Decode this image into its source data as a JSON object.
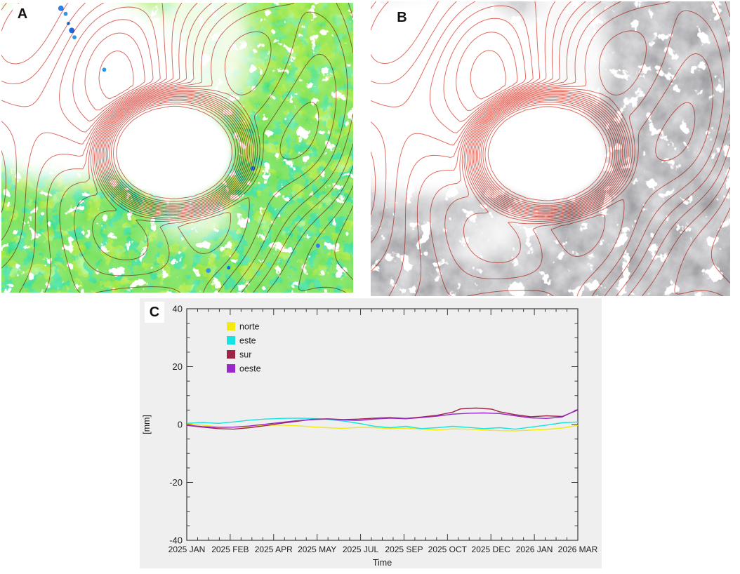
{
  "panels": {
    "a": {
      "label": "A"
    },
    "b": {
      "label": "B"
    },
    "c": {
      "label": "C"
    }
  },
  "map_a": {
    "colors": {
      "data_green": "#3fd23a",
      "cyan_patch": "#12dcc6",
      "yellow_patch": "#cce818",
      "blue_dot": "#2f7fe8",
      "contour": "#d5544a",
      "no_data": "#ffffff"
    }
  },
  "map_b": {
    "colors": {
      "data_gray": "#8d8d8d",
      "contour": "#e0564a",
      "no_data": "#ffffff"
    }
  },
  "chart_data": {
    "type": "line",
    "title": "",
    "xlabel": "Time",
    "ylabel": "[mm]",
    "ylim": [
      -40,
      40
    ],
    "yticks": [
      -40,
      -20,
      0,
      20,
      40
    ],
    "y_minor_step": 5,
    "x_minor_subdivisions": 4,
    "grid": false,
    "legend_position": "upper-left-inside",
    "plot_background": "#efefef",
    "frame_color": "#3a3a3a",
    "x_tick_labels": [
      "2025 JAN",
      "2025 FEB",
      "2025 APR",
      "2025 MAY",
      "2025 JUL",
      "2025 SEP",
      "2025 OCT",
      "2025 DEC",
      "2026 JAN",
      "2026 MAR"
    ],
    "series": [
      {
        "name": "norte",
        "color": "#f2ea10",
        "points": [
          [
            0,
            0.3
          ],
          [
            0.04,
            -0.2
          ],
          [
            0.08,
            -0.8
          ],
          [
            0.12,
            -1.0
          ],
          [
            0.16,
            -0.6
          ],
          [
            0.2,
            -0.3
          ],
          [
            0.24,
            -0.2
          ],
          [
            0.28,
            -0.4
          ],
          [
            0.32,
            -0.8
          ],
          [
            0.36,
            -1.1
          ],
          [
            0.4,
            -1.3
          ],
          [
            0.44,
            -1.0
          ],
          [
            0.48,
            -1.1
          ],
          [
            0.52,
            -1.4
          ],
          [
            0.56,
            -1.2
          ],
          [
            0.6,
            -1.6
          ],
          [
            0.64,
            -1.9
          ],
          [
            0.68,
            -1.5
          ],
          [
            0.72,
            -1.6
          ],
          [
            0.76,
            -1.9
          ],
          [
            0.8,
            -2.1
          ],
          [
            0.84,
            -2.2
          ],
          [
            0.88,
            -1.9
          ],
          [
            0.92,
            -1.7
          ],
          [
            0.96,
            -1.2
          ],
          [
            1,
            -0.3
          ]
        ]
      },
      {
        "name": "este",
        "color": "#17e4e0",
        "points": [
          [
            0,
            0.4
          ],
          [
            0.04,
            0.7
          ],
          [
            0.08,
            0.4
          ],
          [
            0.12,
            0.9
          ],
          [
            0.16,
            1.5
          ],
          [
            0.2,
            1.9
          ],
          [
            0.24,
            2.1
          ],
          [
            0.28,
            2.2
          ],
          [
            0.32,
            2.1
          ],
          [
            0.36,
            1.8
          ],
          [
            0.4,
            1.2
          ],
          [
            0.44,
            0.4
          ],
          [
            0.48,
            -0.6
          ],
          [
            0.52,
            -1.1
          ],
          [
            0.56,
            -0.6
          ],
          [
            0.6,
            -1.4
          ],
          [
            0.64,
            -1.1
          ],
          [
            0.68,
            -0.6
          ],
          [
            0.72,
            -1.0
          ],
          [
            0.76,
            -1.4
          ],
          [
            0.8,
            -1.1
          ],
          [
            0.84,
            -1.6
          ],
          [
            0.88,
            -0.9
          ],
          [
            0.92,
            -0.2
          ],
          [
            0.96,
            0.6
          ],
          [
            1,
            0.9
          ]
        ]
      },
      {
        "name": "sur",
        "color": "#9e2547",
        "points": [
          [
            0,
            -0.3
          ],
          [
            0.04,
            -0.9
          ],
          [
            0.08,
            -1.4
          ],
          [
            0.12,
            -1.6
          ],
          [
            0.16,
            -1.1
          ],
          [
            0.2,
            -0.4
          ],
          [
            0.24,
            0.4
          ],
          [
            0.28,
            1.1
          ],
          [
            0.32,
            1.8
          ],
          [
            0.36,
            2.0
          ],
          [
            0.4,
            1.7
          ],
          [
            0.44,
            1.9
          ],
          [
            0.48,
            2.2
          ],
          [
            0.52,
            2.4
          ],
          [
            0.56,
            2.1
          ],
          [
            0.6,
            2.6
          ],
          [
            0.64,
            3.2
          ],
          [
            0.68,
            4.3
          ],
          [
            0.7,
            5.4
          ],
          [
            0.74,
            5.7
          ],
          [
            0.78,
            5.3
          ],
          [
            0.8,
            4.4
          ],
          [
            0.84,
            3.4
          ],
          [
            0.88,
            2.7
          ],
          [
            0.92,
            3.0
          ],
          [
            0.96,
            2.8
          ],
          [
            1,
            5.0
          ]
        ]
      },
      {
        "name": "oeste",
        "color": "#9927c9",
        "points": [
          [
            0,
            -0.2
          ],
          [
            0.04,
            -0.7
          ],
          [
            0.08,
            -1.0
          ],
          [
            0.12,
            -0.9
          ],
          [
            0.16,
            -0.5
          ],
          [
            0.2,
            0.1
          ],
          [
            0.24,
            0.7
          ],
          [
            0.28,
            1.3
          ],
          [
            0.32,
            1.7
          ],
          [
            0.36,
            1.9
          ],
          [
            0.4,
            1.6
          ],
          [
            0.44,
            1.4
          ],
          [
            0.48,
            1.9
          ],
          [
            0.52,
            2.2
          ],
          [
            0.56,
            2.0
          ],
          [
            0.6,
            2.4
          ],
          [
            0.64,
            2.9
          ],
          [
            0.68,
            3.6
          ],
          [
            0.72,
            3.9
          ],
          [
            0.76,
            4.0
          ],
          [
            0.8,
            3.8
          ],
          [
            0.84,
            3.0
          ],
          [
            0.88,
            2.3
          ],
          [
            0.92,
            2.1
          ],
          [
            0.96,
            2.6
          ],
          [
            1,
            5.2
          ]
        ]
      }
    ]
  }
}
